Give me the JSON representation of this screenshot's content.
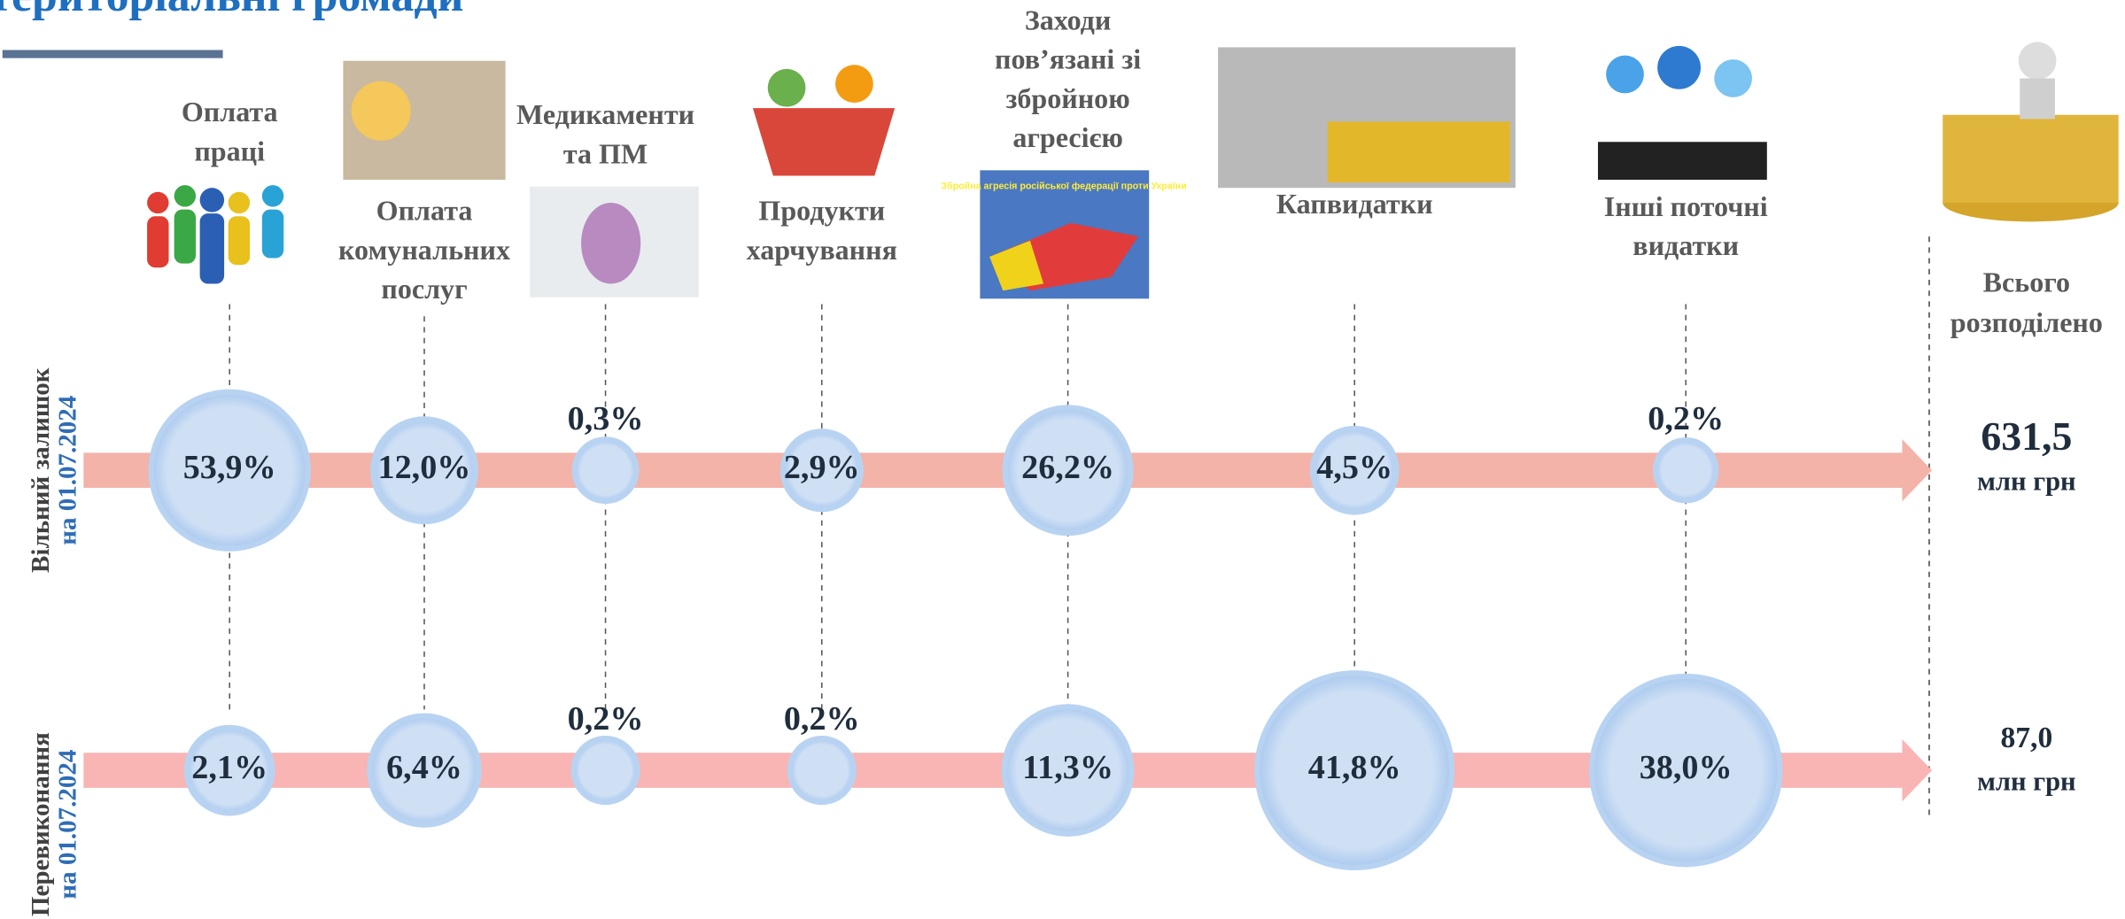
{
  "header": {
    "title": "територіальні громади"
  },
  "categories": [
    {
      "lines": [
        "Оплата",
        "праці"
      ]
    },
    {
      "lines": [
        "Оплата",
        "комунальних",
        "послуг"
      ]
    },
    {
      "lines": [
        "Медикаменти",
        "та ПМ"
      ]
    },
    {
      "lines": [
        "Продукти",
        "харчування"
      ]
    },
    {
      "lines": [
        "Заходи",
        "пов’язані зі",
        "збройною",
        "агресією"
      ]
    },
    {
      "lines": [
        "Капвидатки"
      ]
    },
    {
      "lines": [
        "Інші поточні",
        "видатки"
      ]
    }
  ],
  "total_label": [
    "Всього",
    "розподілено"
  ],
  "rows": [
    {
      "name": "Вільний залишок",
      "date": "на 01.07.2024",
      "values": [
        53.9,
        12.0,
        0.3,
        2.9,
        26.2,
        4.5,
        0.2
      ],
      "value_labels": [
        "53,9%",
        "12,0%",
        "0,3%",
        "2,9%",
        "26,2%",
        "4,5%",
        "0,2%"
      ],
      "total": "631,5",
      "unit": "млн грн"
    },
    {
      "name": "Перевиконання",
      "date": "на 01.07.2024",
      "values": [
        2.1,
        6.4,
        0.2,
        0.2,
        11.3,
        41.8,
        38.0
      ],
      "value_labels": [
        "2,1%",
        "6,4%",
        "0,2%",
        "0,2%",
        "11,3%",
        "41,8%",
        "38,0%"
      ],
      "total": "87,0",
      "unit": "млн грн"
    }
  ],
  "embedded_image_text": "Збройна агресія російської федерації проти України"
}
